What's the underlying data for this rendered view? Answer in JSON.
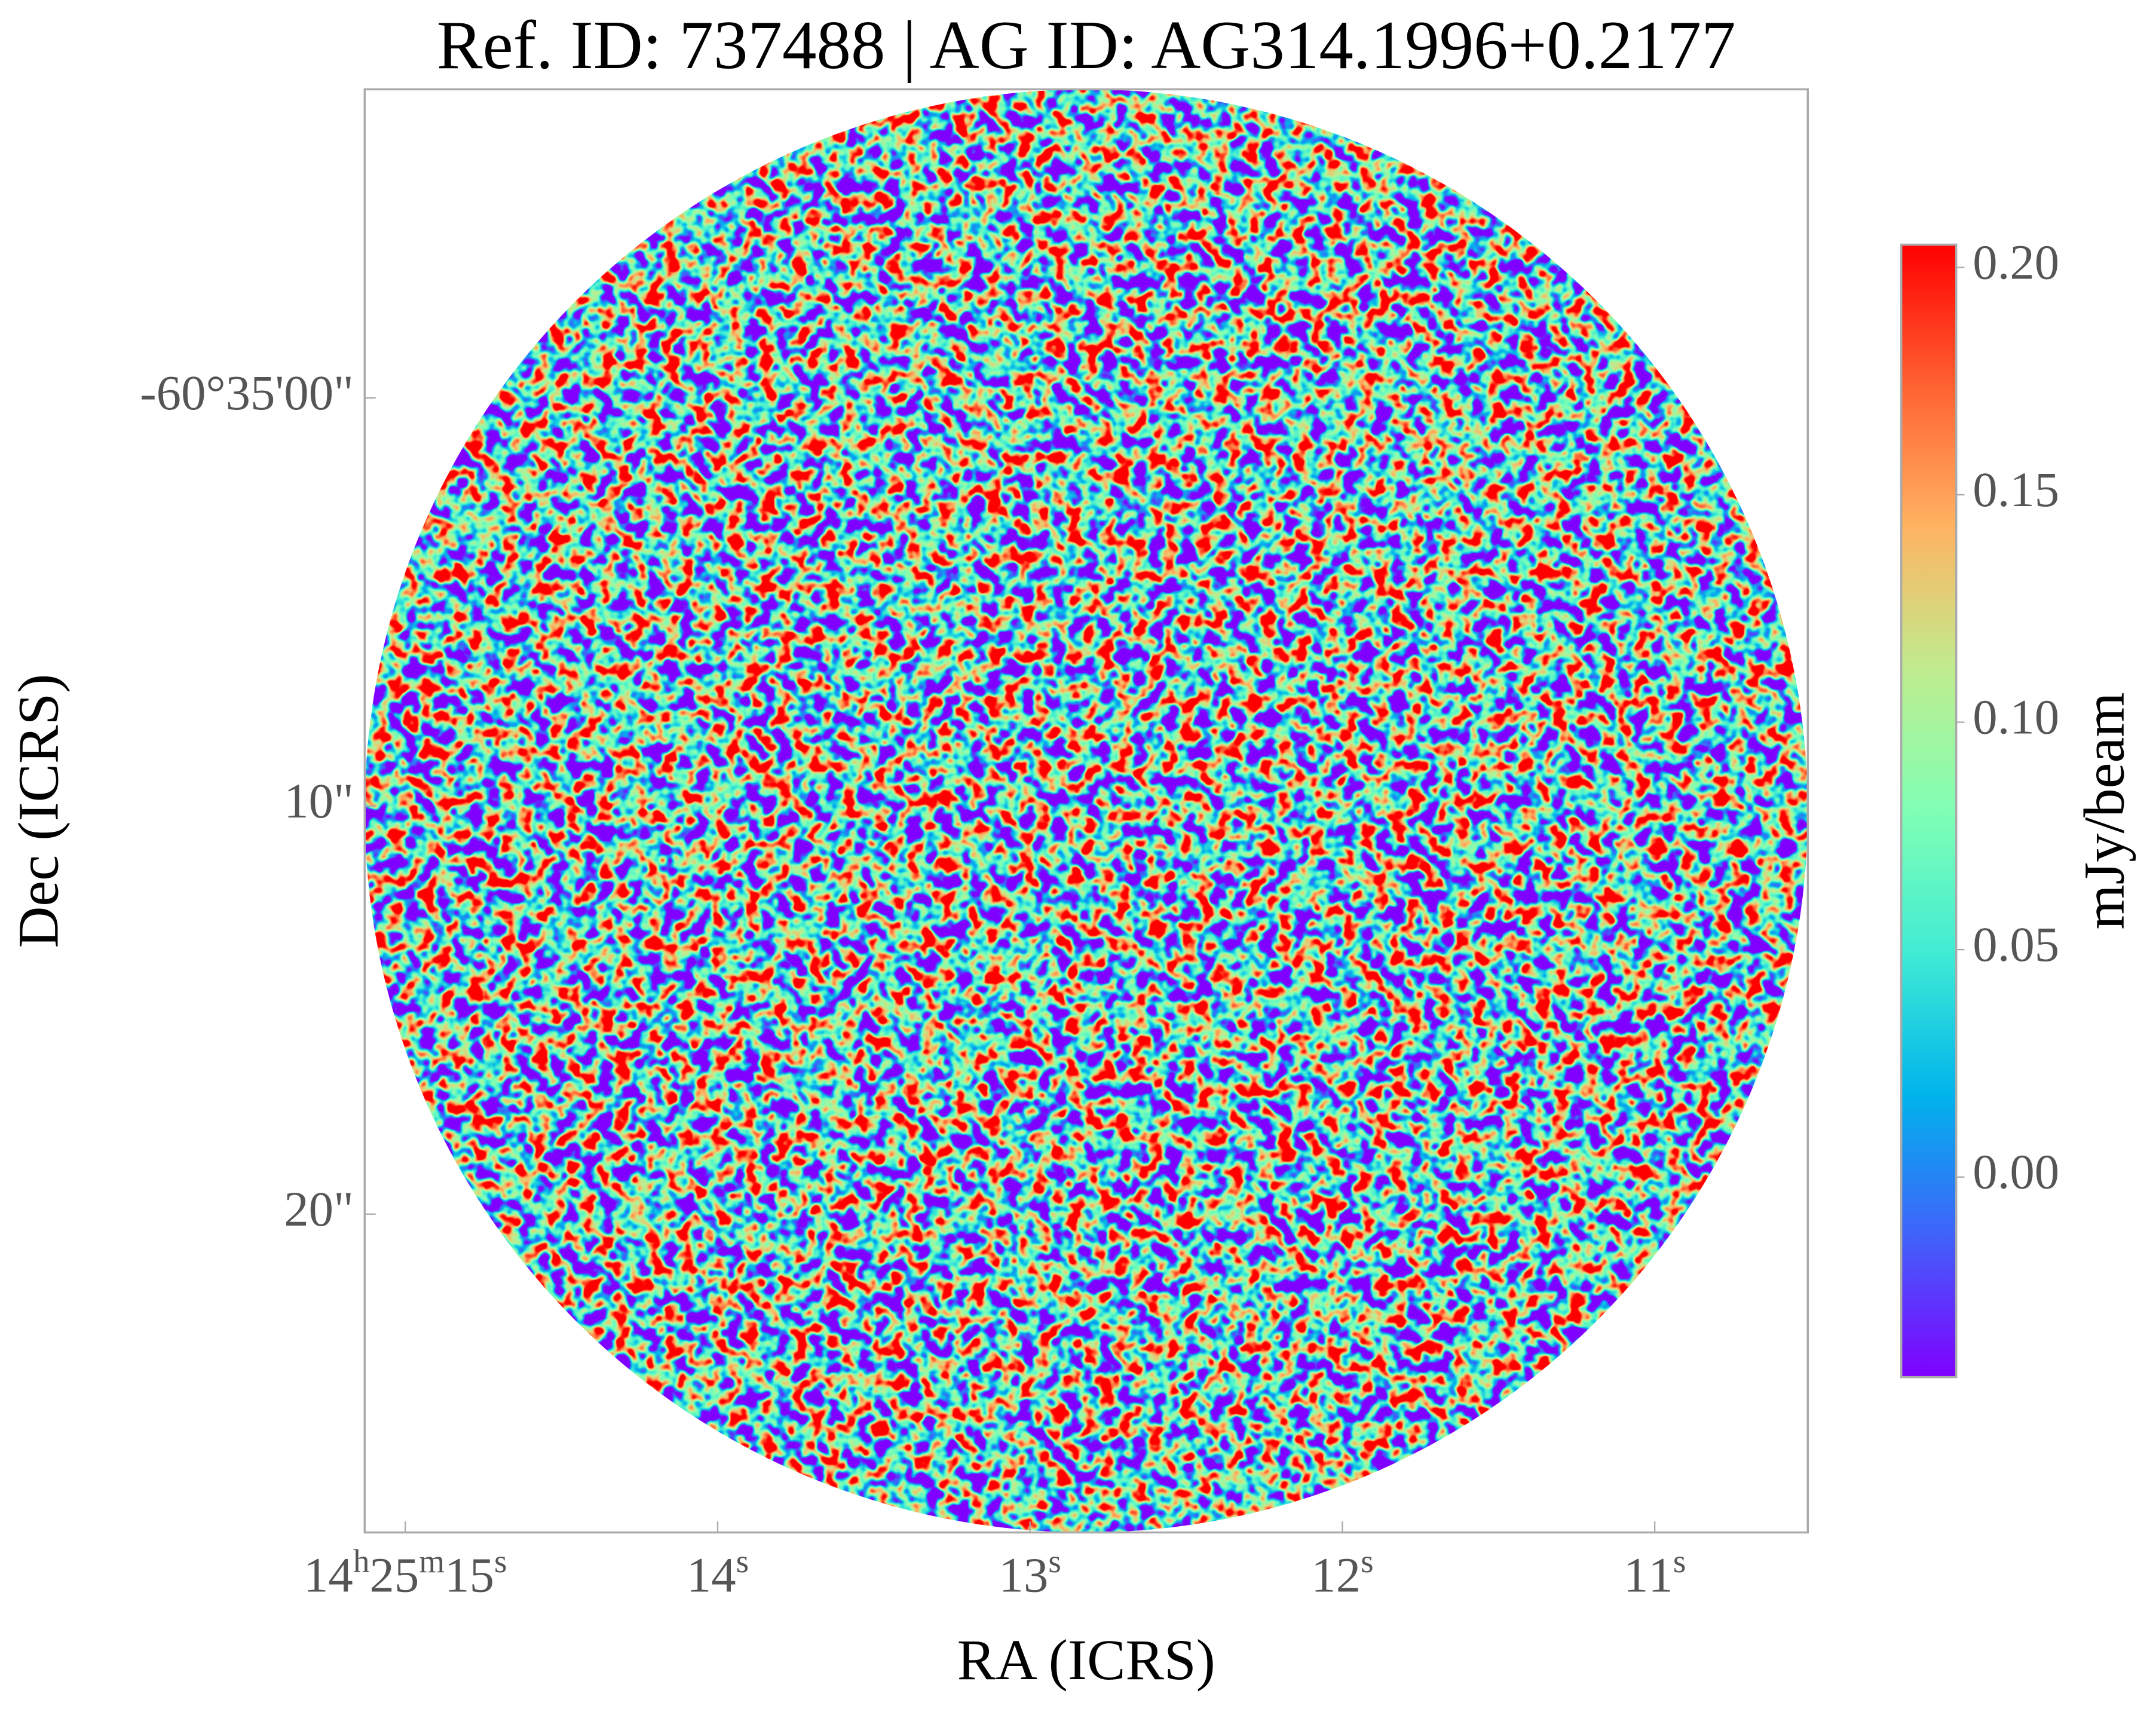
{
  "chart_data": {
    "type": "image",
    "title": "Ref. ID: 737488 | AG ID: AG314.1996+0.2177",
    "xlabel": "RA (ICRS)",
    "ylabel": "Dec (ICRS)",
    "xlim": [
      15.13,
      10.51
    ],
    "xticks": [
      {
        "value": 15,
        "label": "14h25m15s"
      },
      {
        "value": 14,
        "label": "14s"
      },
      {
        "value": 13,
        "label": "13s"
      },
      {
        "value": 12,
        "label": "12s"
      },
      {
        "value": 11,
        "label": "11s"
      }
    ],
    "ylim": [
      -7.56,
      27.8
    ],
    "yticks": [
      {
        "value": 0,
        "label": "-60°35'00\""
      },
      {
        "value": 10,
        "label": "10\""
      },
      {
        "value": 20,
        "label": "20\""
      }
    ],
    "colorbar": {
      "label": "mJy/beam",
      "lim": [
        -0.044,
        0.205
      ],
      "ticks": [
        {
          "value": 0,
          "label": "0.00"
        },
        {
          "value": 0.05,
          "label": "0.05"
        },
        {
          "value": 0.1,
          "label": "0.10"
        },
        {
          "value": 0.15,
          "label": "0.15"
        },
        {
          "value": 0.2,
          "label": "0.20"
        }
      ],
      "colormap": [
        "#8000ff",
        "#4062fa",
        "#00b4ec",
        "#40ecd4",
        "#80ffb4",
        "#bfec8e",
        "#ffb462",
        "#ff6232",
        "#ff0000"
      ]
    }
  }
}
